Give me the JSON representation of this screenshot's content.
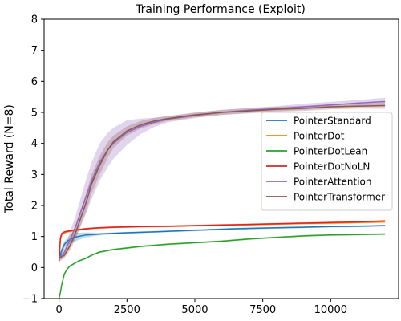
{
  "chart_data": {
    "type": "line",
    "title": "Training Performance (Exploit)",
    "xlabel": "",
    "ylabel": "Total Reward (N=8)",
    "xlim": [
      -550,
      12500
    ],
    "ylim": [
      -1,
      8
    ],
    "xticks": [
      0,
      2500,
      5000,
      7500,
      10000
    ],
    "xtick_labels": [
      "0",
      "2500",
      "5000",
      "7500",
      "10000"
    ],
    "yticks": [
      -1,
      0,
      1,
      2,
      3,
      4,
      5,
      6,
      7,
      8
    ],
    "ytick_labels": [
      "−1",
      "0",
      "1",
      "2",
      "3",
      "4",
      "5",
      "6",
      "7",
      "8"
    ],
    "grid": false,
    "legend_position": "right",
    "series": [
      {
        "name": "PointerStandard",
        "color": "#1f77b4",
        "x": [
          0,
          100,
          200,
          300,
          400,
          500,
          700,
          1000,
          1500,
          2000,
          2500,
          3500,
          5000,
          6500,
          8000,
          9000,
          10000,
          11000,
          12000
        ],
        "y": [
          0.3,
          0.55,
          0.75,
          0.85,
          0.9,
          0.95,
          1.0,
          1.05,
          1.08,
          1.1,
          1.12,
          1.15,
          1.2,
          1.25,
          1.28,
          1.3,
          1.32,
          1.33,
          1.35
        ],
        "band_width": [
          0.1,
          0.1,
          0.1,
          0.1,
          0.15,
          0.15,
          0.12,
          0.08,
          0.04,
          0.03,
          0.03,
          0.03,
          0.03,
          0.03,
          0.03,
          0.03,
          0.03,
          0.03,
          0.03
        ]
      },
      {
        "name": "PointerDot",
        "color": "#ff7f0e",
        "x": [
          0,
          50,
          100,
          200,
          300,
          500,
          1000,
          1500,
          2000,
          3000,
          4000,
          5000,
          6000,
          7000,
          8000,
          9000,
          10000,
          11000,
          12000
        ],
        "y": [
          0.3,
          0.9,
          1.05,
          1.12,
          1.15,
          1.18,
          1.25,
          1.28,
          1.3,
          1.32,
          1.33,
          1.35,
          1.37,
          1.38,
          1.4,
          1.42,
          1.43,
          1.45,
          1.47
        ],
        "band_width": [
          0.03,
          0.03,
          0.03,
          0.03,
          0.03,
          0.03,
          0.03,
          0.03,
          0.03,
          0.03,
          0.03,
          0.03,
          0.03,
          0.03,
          0.03,
          0.03,
          0.03,
          0.03,
          0.03
        ]
      },
      {
        "name": "PointerDotLean",
        "color": "#2ca02c",
        "x": [
          0,
          50,
          100,
          200,
          300,
          400,
          500,
          700,
          1000,
          1200,
          1500,
          2000,
          2500,
          3000,
          4000,
          5000,
          6000,
          7000,
          8000,
          9000,
          10000,
          11000,
          12000
        ],
        "y": [
          -1.0,
          -0.8,
          -0.55,
          -0.2,
          -0.05,
          0.05,
          0.1,
          0.2,
          0.3,
          0.4,
          0.5,
          0.58,
          0.63,
          0.68,
          0.75,
          0.8,
          0.85,
          0.92,
          0.97,
          1.02,
          1.05,
          1.06,
          1.08
        ],
        "band_width": [
          0.05,
          0.05,
          0.05,
          0.04,
          0.03,
          0.03,
          0.03,
          0.03,
          0.03,
          0.03,
          0.03,
          0.03,
          0.03,
          0.03,
          0.03,
          0.03,
          0.03,
          0.03,
          0.03,
          0.03,
          0.03,
          0.03,
          0.03
        ]
      },
      {
        "name": "PointerDotNoLN",
        "color": "#d62728",
        "x": [
          0,
          50,
          100,
          200,
          300,
          500,
          1000,
          1500,
          2000,
          3000,
          4000,
          5000,
          6000,
          7000,
          8000,
          9000,
          10000,
          11000,
          12000
        ],
        "y": [
          0.2,
          0.95,
          1.1,
          1.15,
          1.17,
          1.2,
          1.25,
          1.28,
          1.3,
          1.32,
          1.33,
          1.35,
          1.37,
          1.39,
          1.41,
          1.43,
          1.45,
          1.47,
          1.5
        ],
        "band_width": [
          0.03,
          0.03,
          0.03,
          0.03,
          0.03,
          0.03,
          0.03,
          0.03,
          0.03,
          0.03,
          0.03,
          0.03,
          0.03,
          0.03,
          0.03,
          0.03,
          0.03,
          0.03,
          0.03
        ]
      },
      {
        "name": "PointerAttention",
        "color": "#9467bd",
        "x": [
          0,
          200,
          400,
          600,
          800,
          1000,
          1200,
          1500,
          1800,
          2000,
          2500,
          3000,
          3500,
          4000,
          5000,
          6000,
          7000,
          8000,
          9000,
          10000,
          11000,
          12000
        ],
        "y": [
          0.3,
          0.5,
          0.9,
          1.3,
          1.8,
          2.3,
          2.8,
          3.4,
          3.8,
          4.0,
          4.35,
          4.55,
          4.68,
          4.78,
          4.9,
          5.0,
          5.07,
          5.12,
          5.18,
          5.24,
          5.3,
          5.35
        ],
        "band_width": [
          0.1,
          0.15,
          0.25,
          0.35,
          0.45,
          0.55,
          0.6,
          0.6,
          0.55,
          0.5,
          0.4,
          0.25,
          0.15,
          0.1,
          0.08,
          0.08,
          0.08,
          0.08,
          0.1,
          0.1,
          0.1,
          0.12
        ]
      },
      {
        "name": "PointerTransformer",
        "color": "#8c564b",
        "x": [
          0,
          200,
          400,
          600,
          800,
          1000,
          1200,
          1500,
          1800,
          2000,
          2500,
          3000,
          3500,
          4000,
          5000,
          6000,
          7000,
          8000,
          9000,
          10000,
          11000,
          12000
        ],
        "y": [
          0.3,
          0.4,
          0.7,
          1.1,
          1.6,
          2.1,
          2.7,
          3.3,
          3.8,
          4.05,
          4.4,
          4.6,
          4.72,
          4.8,
          4.92,
          5.0,
          5.05,
          5.1,
          5.13,
          5.18,
          5.2,
          5.22
        ],
        "band_width": [
          0.1,
          0.1,
          0.15,
          0.2,
          0.25,
          0.3,
          0.3,
          0.3,
          0.25,
          0.2,
          0.15,
          0.12,
          0.1,
          0.08,
          0.08,
          0.08,
          0.08,
          0.08,
          0.08,
          0.08,
          0.08,
          0.1
        ]
      }
    ]
  }
}
